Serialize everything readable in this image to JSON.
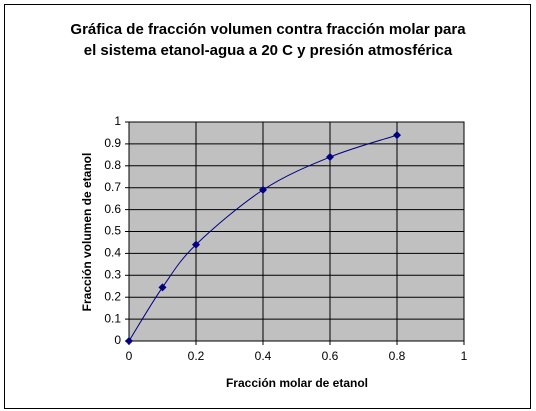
{
  "chart_data": {
    "type": "scatter-line",
    "title": "Gráfica de fracción volumen contra fracción molar para el sistema etanol-agua a 20 C y presión atmosférica",
    "x_label": "Fracción molar de etanol",
    "y_label": "Fracción volumen de etanol",
    "x": [
      0,
      0.1,
      0.2,
      0.4,
      0.6,
      0.8
    ],
    "series": [
      {
        "color": "#000080",
        "values": [
          0,
          0.245,
          0.44,
          0.69,
          0.84,
          0.94
        ]
      }
    ],
    "xlim": [
      0,
      1
    ],
    "xticks": [
      0,
      0.2,
      0.4,
      0.6,
      0.8,
      1
    ],
    "ylim": [
      0,
      1
    ],
    "yticks": [
      0,
      0.1,
      0.2,
      0.3,
      0.4,
      0.5,
      0.6,
      0.7,
      0.8,
      0.9,
      1
    ],
    "grid": true,
    "smooth": true
  }
}
